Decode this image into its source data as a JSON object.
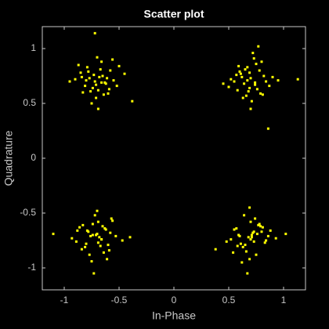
{
  "chart_data": {
    "type": "scatter",
    "title": "Scatter plot",
    "x_label": "In-Phase",
    "y_label": "Quadrature",
    "xlim": [
      -1.2,
      1.2
    ],
    "ylim": [
      -1.2,
      1.2
    ],
    "xticks": [
      -1,
      -0.5,
      0,
      0.5,
      1
    ],
    "yticks": [
      -1,
      -0.5,
      0,
      0.5,
      1
    ],
    "x": [
      -0.72,
      -0.65,
      -0.81,
      -0.58,
      -0.69,
      -0.77,
      -0.62,
      -0.85,
      -0.71,
      -0.55,
      -0.9,
      -0.66,
      -0.74,
      -0.6,
      -0.79,
      -0.68,
      -0.52,
      -0.83,
      -0.7,
      -0.63,
      -0.45,
      -0.95,
      -0.75,
      -0.67,
      -0.59,
      -0.73,
      -0.8,
      -0.64,
      -0.87,
      -0.56,
      -0.38,
      -0.71,
      -0.78,
      -0.61,
      -0.69,
      -0.76,
      -0.5,
      -0.84,
      -0.66,
      -0.72,
      0.7,
      0.64,
      0.78,
      0.58,
      0.73,
      0.66,
      0.82,
      0.55,
      0.69,
      0.75,
      0.61,
      0.87,
      0.71,
      0.52,
      0.79,
      0.67,
      0.74,
      0.6,
      0.9,
      0.68,
      0.45,
      0.95,
      0.72,
      0.63,
      0.8,
      0.57,
      0.76,
      0.65,
      0.84,
      0.7,
      1.13,
      0.5,
      0.77,
      0.62,
      0.81,
      0.69,
      0.74,
      0.59,
      0.86,
      0.67,
      -0.71,
      -0.66,
      -0.79,
      -0.6,
      -0.74,
      -0.68,
      -0.84,
      -0.56,
      -0.7,
      -0.77,
      -0.63,
      -0.89,
      -0.72,
      -0.53,
      -0.81,
      -0.65,
      -0.75,
      -0.58,
      -0.93,
      -0.69,
      -1.1,
      -0.47,
      -0.73,
      -0.62,
      -0.8,
      -0.57,
      -0.76,
      -0.64,
      -0.86,
      -0.7,
      -0.4,
      -0.67,
      -0.78,
      -0.61,
      -0.83,
      -0.69,
      -0.74,
      -0.59,
      -0.88,
      -0.66,
      0.68,
      0.73,
      0.61,
      0.79,
      0.66,
      0.71,
      0.57,
      0.84,
      0.7,
      0.63,
      0.76,
      0.52,
      0.69,
      0.88,
      0.6,
      0.74,
      0.65,
      0.81,
      0.48,
      0.72,
      0.93,
      0.38,
      0.67,
      0.78,
      0.59,
      0.83,
      0.64,
      0.75,
      0.55,
      0.7,
      1.02,
      0.62,
      0.77,
      0.58,
      0.86,
      0.69,
      0.73,
      0.8,
      0.54,
      0.71
    ],
    "series": [
      {
        "color": "#ffff00",
        "values": [
          0.7,
          0.75,
          0.66,
          0.8,
          0.62,
          0.73,
          0.68,
          0.78,
          0.55,
          0.71,
          0.72,
          0.88,
          0.64,
          0.59,
          0.83,
          0.74,
          0.66,
          0.6,
          0.92,
          0.69,
          0.77,
          0.7,
          0.5,
          0.81,
          0.63,
          0.76,
          0.71,
          0.58,
          0.85,
          0.9,
          0.52,
          0.67,
          0.79,
          0.73,
          0.45,
          0.61,
          0.84,
          0.74,
          0.69,
          1.14,
          0.73,
          0.68,
          0.8,
          0.62,
          0.91,
          0.57,
          0.75,
          0.7,
          0.64,
          0.86,
          0.77,
          0.66,
          0.52,
          0.72,
          0.59,
          0.83,
          0.69,
          0.79,
          0.74,
          0.61,
          0.68,
          0.71,
          0.96,
          0.55,
          0.88,
          0.76,
          0.63,
          0.81,
          0.7,
          0.45,
          0.72,
          0.65,
          1.02,
          0.74,
          0.58,
          0.78,
          0.67,
          0.84,
          0.27,
          0.71,
          -0.7,
          -0.74,
          -0.66,
          -0.79,
          -0.6,
          -0.72,
          -0.83,
          -0.57,
          -0.69,
          -0.88,
          -0.64,
          -0.76,
          -0.52,
          -0.71,
          -0.81,
          -0.62,
          -0.94,
          -0.68,
          -0.73,
          -0.58,
          -0.69,
          -0.75,
          -1.05,
          -0.65,
          -0.78,
          -0.55,
          -0.71,
          -0.86,
          -0.63,
          -0.48,
          -0.72,
          -0.8,
          -0.67,
          -0.92,
          -0.61,
          -0.77,
          -0.7,
          -0.84,
          -0.66,
          -0.74,
          -0.72,
          -0.67,
          -0.78,
          -0.62,
          -0.85,
          -0.7,
          -0.64,
          -0.75,
          -0.58,
          -0.81,
          -0.69,
          -0.74,
          -0.92,
          -0.66,
          -0.71,
          -0.55,
          -0.79,
          -0.63,
          -0.76,
          -0.68,
          -0.73,
          -0.83,
          -1.05,
          -0.6,
          -0.7,
          -0.77,
          -0.52,
          -0.88,
          -0.65,
          -0.74,
          -0.69,
          -0.95,
          -0.61,
          -0.8,
          -0.71,
          -0.45,
          -0.76,
          -0.67,
          -0.86,
          -0.72
        ]
      }
    ]
  }
}
